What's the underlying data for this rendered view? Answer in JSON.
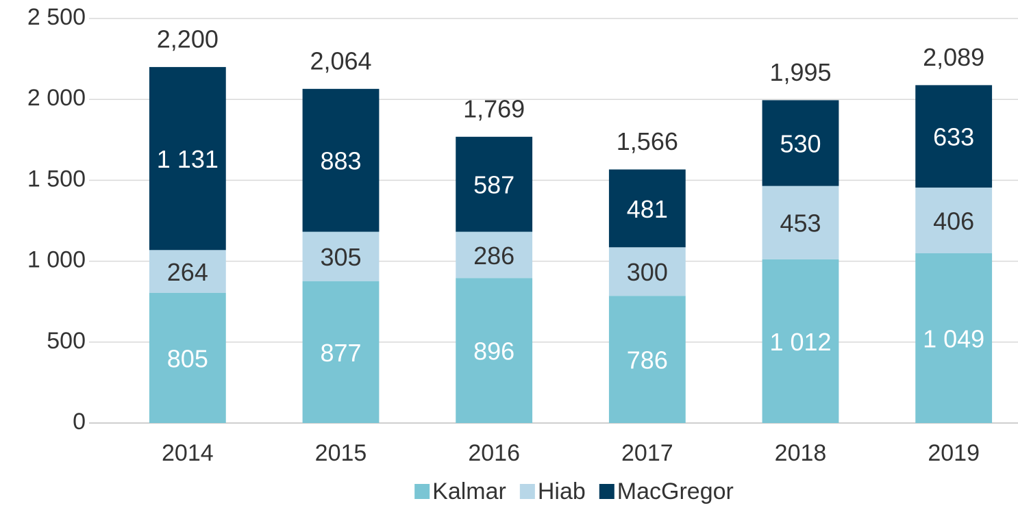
{
  "chart_data": {
    "type": "stacked_bar",
    "categories": [
      "2014",
      "2015",
      "2016",
      "2017",
      "2018",
      "2019"
    ],
    "series": [
      {
        "name": "Kalmar",
        "color": "#7ac5d4",
        "label_color": "#ffffff",
        "values": [
          805,
          877,
          896,
          786,
          1012,
          1049
        ],
        "value_labels": [
          "805",
          "877",
          "896",
          "786",
          "1 012",
          "1 049"
        ]
      },
      {
        "name": "Hiab",
        "color": "#b8d7e8",
        "label_color": "#333333",
        "values": [
          264,
          305,
          286,
          300,
          453,
          406
        ],
        "value_labels": [
          "264",
          "305",
          "286",
          "300",
          "453",
          "406"
        ]
      },
      {
        "name": "MacGregor",
        "color": "#003a5c",
        "label_color": "#ffffff",
        "values": [
          1131,
          883,
          587,
          481,
          530,
          633
        ],
        "value_labels": [
          "1 131",
          "883",
          "587",
          "481",
          "530",
          "633"
        ]
      }
    ],
    "total_labels": [
      "2,200",
      "2,064",
      "1,769",
      "1,566",
      "1,995",
      "2,089"
    ],
    "ylim": [
      0,
      2500
    ],
    "yticks": [
      0,
      500,
      {
        "value": 1000,
        "label": "1 000"
      },
      {
        "value": 1500,
        "label": "1 500"
      },
      {
        "value": 2000,
        "label": "2 000"
      },
      {
        "value": 2500,
        "label": "2 500"
      }
    ],
    "grid": true,
    "legend": "bottom"
  }
}
